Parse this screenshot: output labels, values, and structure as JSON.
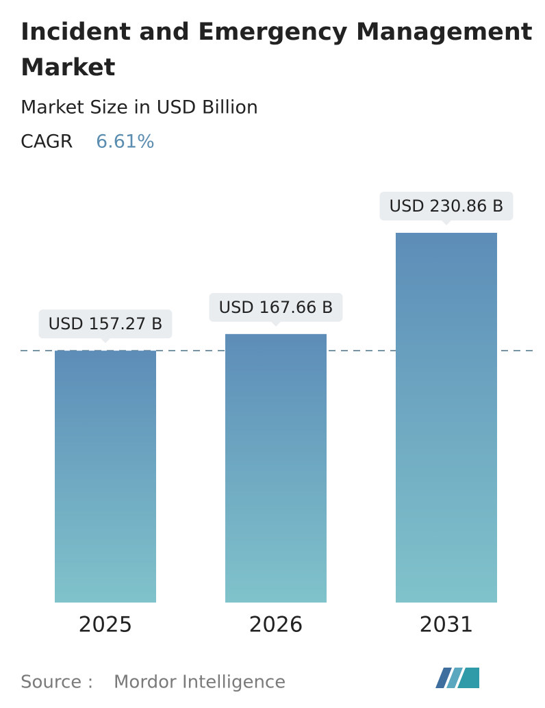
{
  "chart_data": {
    "type": "bar",
    "title": "Incident and Emergency Management Market",
    "subtitle": "Market Size in USD Billion",
    "cagr_label": "CAGR",
    "cagr": "6.61%",
    "categories": [
      "2025",
      "2026",
      "2031"
    ],
    "values": [
      157.27,
      167.66,
      230.86
    ],
    "value_labels": [
      "USD 157.27 B",
      "USD 167.66 B",
      "USD 230.86 B"
    ],
    "colors": [
      "#5d8db8",
      "#80c3cb"
    ],
    "source_label": "Source :",
    "source": "Mordor Intelligence"
  }
}
